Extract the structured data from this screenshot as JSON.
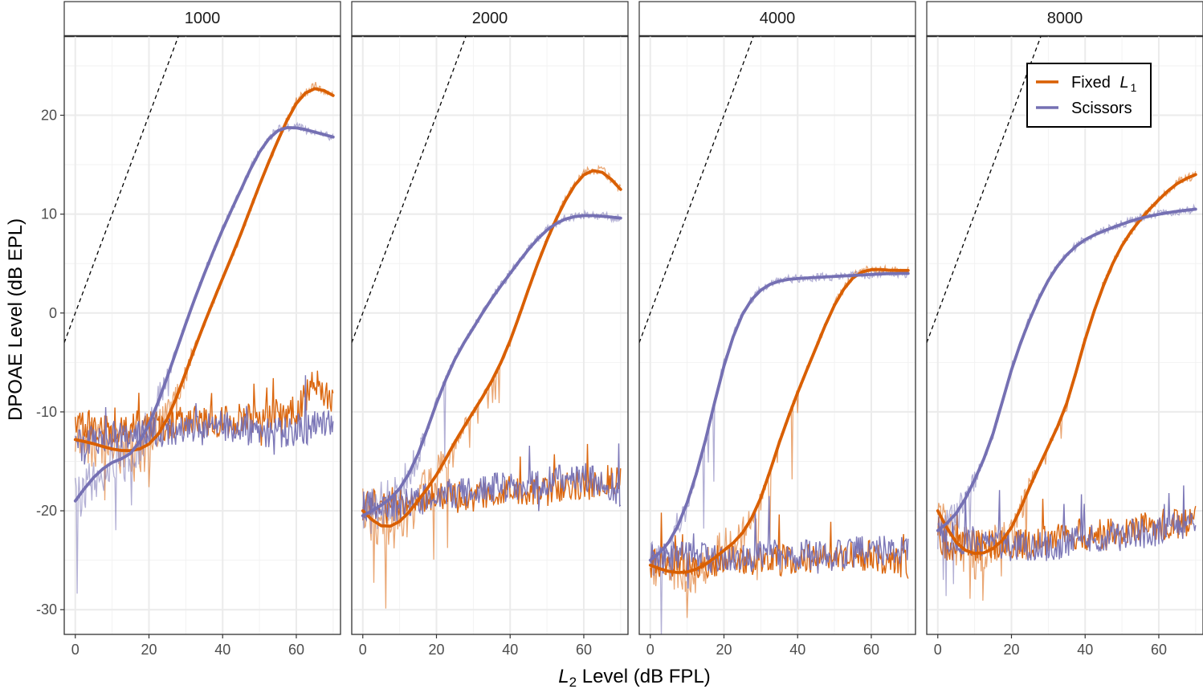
{
  "figure": {
    "ylabel": "DPOAE Level (dB EPL)",
    "xlabel_var": "L",
    "xlabel_sub": "2",
    "xlabel_rest": " Level (dB FPL)"
  },
  "legend": {
    "placement": "top-right (inside 8000 panel)",
    "items": [
      {
        "label_main": "Fixed ",
        "label_var": "L",
        "label_sub": "1",
        "color": "#d95f02"
      },
      {
        "label_main": "Scissors",
        "label_var": "",
        "label_sub": "",
        "color": "#7570b3"
      }
    ]
  },
  "colors": {
    "fixed": "#d95f02",
    "scissors": "#7570b3",
    "grid": "#ebebeb",
    "strip": "#ffffff"
  },
  "chart_data": {
    "type": "line",
    "facets": [
      "1000",
      "2000",
      "4000",
      "8000"
    ],
    "xlim": [
      -3,
      72
    ],
    "ylim": [
      -32.5,
      28
    ],
    "xticks": [
      0,
      20,
      40,
      60
    ],
    "yticks": [
      -30,
      -20,
      -10,
      0,
      10,
      20
    ],
    "grid": true,
    "reference_line": {
      "style": "dashed",
      "slope": 1,
      "intercept": 0
    },
    "panels": [
      {
        "facet": "1000",
        "series": [
          {
            "name": "Fixed L1",
            "noise_floor": {
              "x": [
                0,
                10,
                20,
                30,
                40,
                50,
                60,
                65,
                70
              ],
              "y": [
                -11,
                -12,
                -11.5,
                -11,
                -11,
                -10.5,
                -10,
                -7,
                -9
              ]
            },
            "fit": {
              "x": [
                0,
                5,
                10,
                15,
                20,
                25,
                30,
                35,
                40,
                45,
                50,
                55,
                60,
                65,
                70
              ],
              "y": [
                -12.8,
                -13.2,
                -13.8,
                -14,
                -13.5,
                -11,
                -6,
                -1,
                3.5,
                8,
                13,
                17.5,
                21.5,
                23,
                22
              ]
            }
          },
          {
            "name": "Scissors",
            "noise_floor": {
              "x": [
                0,
                10,
                20,
                30,
                40,
                50,
                60,
                70
              ],
              "y": [
                -13,
                -12.5,
                -12,
                -12,
                -11.5,
                -12,
                -12,
                -11
              ]
            },
            "fit": {
              "x": [
                0,
                5,
                10,
                15,
                20,
                25,
                30,
                35,
                40,
                45,
                50,
                55,
                60,
                65,
                70
              ],
              "y": [
                -19,
                -16.5,
                -15,
                -14.5,
                -11.5,
                -6.5,
                -1,
                4,
                8.5,
                12.5,
                16.5,
                18.7,
                18.8,
                18.3,
                17.8
              ]
            }
          }
        ]
      },
      {
        "facet": "2000",
        "series": [
          {
            "name": "Fixed L1",
            "noise_floor": {
              "x": [
                0,
                10,
                20,
                30,
                40,
                50,
                60,
                70
              ],
              "y": [
                -19.5,
                -19,
                -18.5,
                -18.5,
                -18,
                -18,
                -17.5,
                -16.5
              ]
            },
            "fit": {
              "x": [
                0,
                5,
                10,
                15,
                20,
                25,
                30,
                35,
                40,
                45,
                50,
                55,
                60,
                65,
                70
              ],
              "y": [
                -20,
                -21.8,
                -21.3,
                -19,
                -16.5,
                -13,
                -10,
                -7,
                -3,
                2.5,
                7.5,
                11.5,
                14.3,
                14.5,
                12.5
              ]
            }
          },
          {
            "name": "Scissors",
            "noise_floor": {
              "x": [
                0,
                10,
                20,
                30,
                40,
                50,
                60,
                70
              ],
              "y": [
                -19.5,
                -19.5,
                -18.5,
                -18,
                -17.5,
                -17,
                -16.5,
                -18
              ]
            },
            "fit": {
              "x": [
                0,
                5,
                10,
                15,
                20,
                25,
                30,
                35,
                40,
                45,
                50,
                55,
                60,
                65,
                70
              ],
              "y": [
                -20.5,
                -19.5,
                -18,
                -14.5,
                -9,
                -4.5,
                -1.5,
                1.5,
                4,
                6.5,
                8.5,
                9.6,
                9.9,
                9.8,
                9.6
              ]
            }
          }
        ]
      },
      {
        "facet": "4000",
        "series": [
          {
            "name": "Fixed L1",
            "noise_floor": {
              "x": [
                0,
                10,
                20,
                30,
                40,
                50,
                60,
                70
              ],
              "y": [
                -25.5,
                -25.5,
                -25,
                -25,
                -25,
                -25,
                -24.5,
                -25.5
              ]
            },
            "fit": {
              "x": [
                0,
                5,
                10,
                15,
                20,
                25,
                30,
                35,
                40,
                45,
                50,
                55,
                60,
                65,
                70
              ],
              "y": [
                -25.5,
                -26.2,
                -26.3,
                -25.5,
                -24,
                -22.5,
                -19,
                -13,
                -8,
                -3.5,
                1,
                3.8,
                4.5,
                4.3,
                4.3
              ]
            }
          },
          {
            "name": "Scissors",
            "noise_floor": {
              "x": [
                0,
                10,
                20,
                30,
                40,
                50,
                60,
                70
              ],
              "y": [
                -25,
                -24.5,
                -25,
                -24.5,
                -24.5,
                -24.5,
                -24,
                -24
              ]
            },
            "fit": {
              "x": [
                0,
                5,
                10,
                15,
                20,
                25,
                30,
                35,
                40,
                45,
                50,
                55,
                60,
                65,
                70
              ],
              "y": [
                -25,
                -23.5,
                -19.5,
                -13,
                -5,
                0.2,
                2.5,
                3.3,
                3.5,
                3.6,
                3.7,
                3.8,
                3.9,
                4,
                4
              ]
            }
          }
        ]
      },
      {
        "facet": "8000",
        "series": [
          {
            "name": "Fixed L1",
            "noise_floor": {
              "x": [
                0,
                10,
                20,
                30,
                40,
                50,
                60,
                70
              ],
              "y": [
                -23.5,
                -23.5,
                -23.5,
                -23,
                -22.5,
                -22,
                -21.5,
                -21
              ]
            },
            "fit": {
              "x": [
                0,
                5,
                10,
                15,
                20,
                25,
                30,
                35,
                40,
                45,
                50,
                55,
                60,
                65,
                70
              ],
              "y": [
                -20,
                -23.5,
                -24.5,
                -24,
                -22,
                -17.5,
                -13.5,
                -9.5,
                -2.5,
                3,
                7,
                9.5,
                11.5,
                13.2,
                14
              ]
            }
          },
          {
            "name": "Scissors",
            "noise_floor": {
              "x": [
                0,
                10,
                20,
                30,
                40,
                50,
                60,
                70
              ],
              "y": [
                -22.5,
                -23,
                -23.5,
                -23.5,
                -23,
                -22.5,
                -22,
                -21.5
              ]
            },
            "fit": {
              "x": [
                0,
                5,
                10,
                15,
                20,
                25,
                30,
                35,
                40,
                45,
                50,
                55,
                60,
                65,
                70
              ],
              "y": [
                -22,
                -20.5,
                -17,
                -12.5,
                -5.5,
                -0.5,
                3.5,
                6,
                7.5,
                8.3,
                9,
                9.6,
                10,
                10.3,
                10.5
              ]
            }
          }
        ]
      }
    ]
  }
}
